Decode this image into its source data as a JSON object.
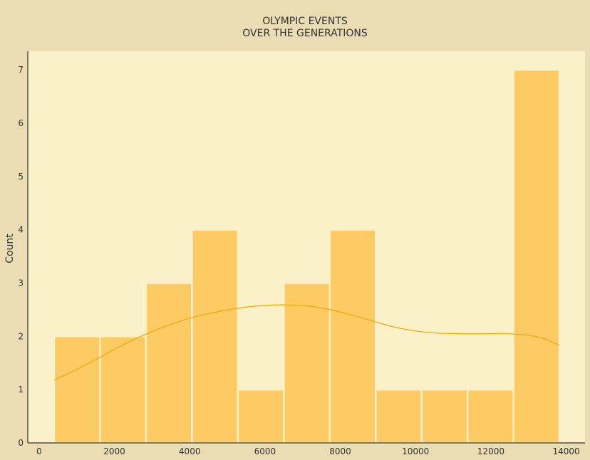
{
  "chart_data": {
    "type": "bar",
    "subtype": "histogram",
    "title_lines": [
      "OLYMPIC EVENTS",
      "OVER THE GENERATIONS"
    ],
    "xlabel": "",
    "ylabel": "Count",
    "xlim": [
      -300,
      14500
    ],
    "ylim": [
      0,
      7.35
    ],
    "xticks": [
      0,
      2000,
      4000,
      6000,
      8000,
      10000,
      12000,
      14000
    ],
    "yticks": [
      0,
      1,
      2,
      3,
      4,
      5,
      6,
      7
    ],
    "bins": [
      {
        "start": 400,
        "end": 1620,
        "count": 2
      },
      {
        "start": 1620,
        "end": 2840,
        "count": 2
      },
      {
        "start": 2840,
        "end": 4060,
        "count": 3
      },
      {
        "start": 4060,
        "end": 5280,
        "count": 4
      },
      {
        "start": 5280,
        "end": 6500,
        "count": 1
      },
      {
        "start": 6500,
        "end": 7720,
        "count": 3
      },
      {
        "start": 7720,
        "end": 8940,
        "count": 4
      },
      {
        "start": 8940,
        "end": 10160,
        "count": 1
      },
      {
        "start": 10160,
        "end": 11380,
        "count": 1
      },
      {
        "start": 11380,
        "end": 12600,
        "count": 1
      },
      {
        "start": 12600,
        "end": 13820,
        "count": 7
      }
    ],
    "kde_curve": {
      "x": [
        400,
        1000,
        1600,
        2200,
        2800,
        3400,
        4000,
        4600,
        5200,
        5800,
        6400,
        7000,
        7600,
        8200,
        8800,
        9400,
        10000,
        10600,
        11200,
        11800,
        12400,
        13000,
        13400,
        13820
      ],
      "y": [
        1.18,
        1.38,
        1.6,
        1.83,
        2.03,
        2.2,
        2.34,
        2.44,
        2.52,
        2.57,
        2.59,
        2.58,
        2.52,
        2.42,
        2.3,
        2.18,
        2.1,
        2.06,
        2.05,
        2.05,
        2.05,
        2.02,
        1.96,
        1.83
      ]
    },
    "grid": false,
    "colors": {
      "figure_background": "#eadcb3",
      "plot_background": "#fbf1c8",
      "bar_fill": "#fdca64",
      "bar_edge": "#fbf1c8",
      "kde_line": "#f4a90a",
      "axis_line": "#333333"
    }
  }
}
